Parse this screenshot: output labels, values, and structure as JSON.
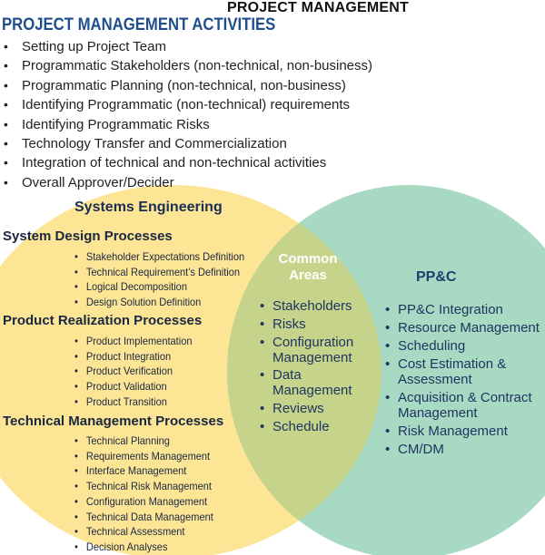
{
  "title": "PROJECT MANAGEMENT",
  "pm_activities": {
    "heading": "PROJECT MANAGEMENT ACTIVITIES",
    "items": [
      "Setting up Project Team",
      "Programmatic Stakeholders (non-technical, non-business)",
      "Programmatic Planning (non-technical, non-business)",
      "Identifying Programmatic (non-technical) requirements",
      "Identifying Programmatic Risks",
      "Technology Transfer and Commercialization",
      "Integration of technical and non-technical activities",
      "Overall Approver/Decider"
    ]
  },
  "systems_engineering": {
    "heading": "Systems Engineering",
    "groups": [
      {
        "title": "System Design Processes",
        "items": [
          "Stakeholder Expectations Definition",
          "Technical Requirement’s Definition",
          "Logical Decomposition",
          "Design Solution Definition"
        ]
      },
      {
        "title": "Product Realization Processes",
        "items": [
          "Product Implementation",
          "Product Integration",
          "Product Verification",
          "Product Validation",
          "Product Transition"
        ]
      },
      {
        "title": "Technical Management Processes",
        "items": [
          "Technical Planning",
          "Requirements Management",
          "Interface Management",
          "Technical Risk Management",
          "Configuration Management",
          "Technical Data Management",
          "Technical Assessment",
          "Decision Analyses"
        ]
      }
    ]
  },
  "common_areas": {
    "heading_line1": "Common",
    "heading_line2": "Areas",
    "items": [
      "Stakeholders",
      "Risks",
      "Configuration Management",
      "Data Management",
      "Reviews",
      "Schedule"
    ]
  },
  "ppc": {
    "heading": "PP&C",
    "items": [
      "PP&C Integration",
      "Resource Management",
      "Scheduling",
      "Cost Estimation & Assessment",
      "Acquisition & Contract Management",
      "Risk Management",
      "CM/DM"
    ]
  },
  "colors": {
    "se_circle": "#fde596",
    "ppc_circle": "#a8d9c3",
    "overlap": "#c5d38b",
    "heading_blue": "#1f4e8c",
    "white_text": "#ffffff"
  }
}
